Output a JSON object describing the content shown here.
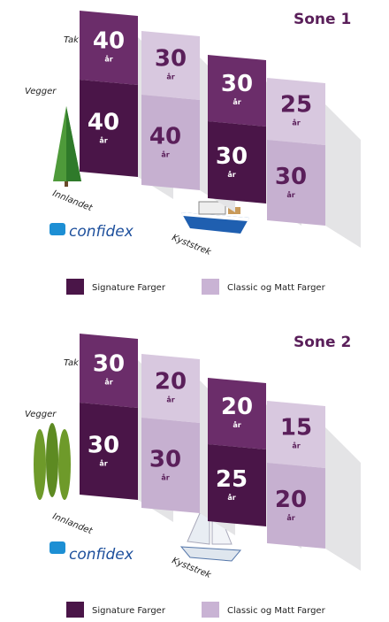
{
  "zones": [
    {
      "title": "Sone 1",
      "roof_label": "Tak",
      "wall_label": "Vegger",
      "inland_label": "Innlandet",
      "coast_label": "Kyststrek",
      "brand": "confidex",
      "unit": "år",
      "inland": {
        "signature": {
          "roof": 40,
          "wall": 40
        },
        "classic": {
          "roof": 30,
          "wall": 40
        }
      },
      "coast": {
        "signature": {
          "roof": 30,
          "wall": 30
        },
        "classic": {
          "roof": 25,
          "wall": 30
        }
      },
      "legend": [
        "Signature Farger",
        "Classic og Matt Farger"
      ]
    },
    {
      "title": "Sone 2",
      "roof_label": "Tak",
      "wall_label": "Vegger",
      "inland_label": "Innlandet",
      "coast_label": "Kyststrek",
      "brand": "confidex",
      "unit": "år",
      "inland": {
        "signature": {
          "roof": 30,
          "wall": 30
        },
        "classic": {
          "roof": 20,
          "wall": 30
        }
      },
      "coast": {
        "signature": {
          "roof": 20,
          "wall": 25
        },
        "classic": {
          "roof": 15,
          "wall": 20
        }
      },
      "legend": [
        "Signature Farger",
        "Classic og Matt Farger"
      ]
    }
  ]
}
